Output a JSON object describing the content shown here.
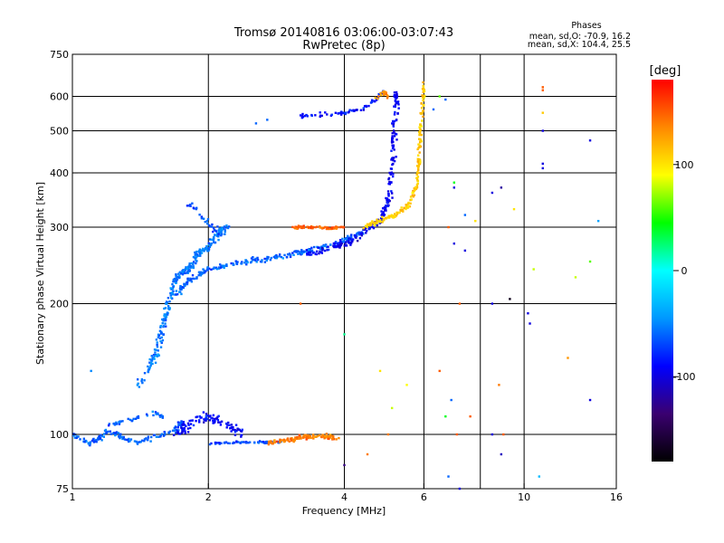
{
  "chart_data": {
    "type": "scatter",
    "title": "Tromsø 20140816 03:06:00-03:07:43",
    "subtitle": "RwPretec (8p)",
    "xlabel": "Frequency [MHz]",
    "ylabel": "Stationary phase Virtual Height [km]",
    "x_scale": "log",
    "y_scale": "log",
    "xlim": [
      1,
      16
    ],
    "ylim": [
      75,
      750
    ],
    "x_ticks": [
      1,
      2,
      4,
      6,
      10,
      16
    ],
    "x_grid": [
      2,
      4,
      6,
      8,
      10
    ],
    "y_ticks": [
      75,
      100,
      200,
      300,
      400,
      500,
      600,
      750
    ],
    "y_grid": [
      100,
      200,
      300,
      400,
      500,
      600
    ],
    "grid": true,
    "phase_stats": {
      "title": "Phases",
      "line_o": "mean, sd,O: -70.9, 16.2",
      "line_x": "mean, sd,X: 104.4, 25.5"
    },
    "colorbar": {
      "label": "[deg]",
      "range": [
        -180,
        180
      ],
      "ticks": [
        100,
        0,
        -100
      ],
      "colors": [
        "#000000",
        "#3a0070",
        "#0000ff",
        "#0098ff",
        "#00ffff",
        "#00ff00",
        "#ffff00",
        "#ff8800",
        "#ff0000"
      ]
    },
    "series_traces": [
      {
        "points": [
          [
            1.0,
            100,
            -60
          ],
          [
            1.05,
            97,
            -60
          ],
          [
            1.1,
            95,
            -60
          ],
          [
            1.15,
            98,
            -60
          ],
          [
            1.2,
            102,
            -60
          ],
          [
            1.3,
            98,
            -60
          ],
          [
            1.4,
            96,
            -60
          ],
          [
            1.5,
            98,
            -60
          ],
          [
            1.6,
            100,
            -60
          ],
          [
            1.7,
            103,
            -60
          ],
          [
            1.75,
            107,
            -60
          ]
        ],
        "spread_x": 0.02,
        "spread_y": 0.02,
        "n": 140
      },
      {
        "points": [
          [
            1.2,
            105,
            -60
          ],
          [
            1.3,
            107,
            -60
          ],
          [
            1.5,
            112,
            -60
          ],
          [
            1.6,
            110,
            -60
          ]
        ],
        "spread_x": 0.02,
        "spread_y": 0.02,
        "n": 40
      },
      {
        "points": [
          [
            1.4,
            130,
            -55
          ],
          [
            1.5,
            145,
            -55
          ],
          [
            1.55,
            160,
            -55
          ],
          [
            1.6,
            185,
            -55
          ],
          [
            1.65,
            210,
            -55
          ],
          [
            1.7,
            230,
            -55
          ],
          [
            1.8,
            240,
            -55
          ],
          [
            1.9,
            260,
            -55
          ],
          [
            2.0,
            270,
            -55
          ],
          [
            2.1,
            290,
            -55
          ],
          [
            2.2,
            300,
            -55
          ]
        ],
        "spread_x": 0.025,
        "spread_y": 0.03,
        "n": 280
      },
      {
        "points": [
          [
            1.7,
            210,
            -60
          ],
          [
            1.8,
            225,
            -60
          ],
          [
            2.0,
            240,
            -60
          ],
          [
            2.4,
            250,
            -60
          ],
          [
            2.8,
            255,
            -60
          ],
          [
            3.2,
            262,
            -60
          ],
          [
            3.6,
            270,
            -60
          ],
          [
            4.0,
            280,
            -60
          ],
          [
            4.4,
            292,
            -60
          ]
        ],
        "spread_x": 0.02,
        "spread_y": 0.022,
        "n": 260
      },
      {
        "points": [
          [
            1.7,
            100,
            -90
          ],
          [
            1.8,
            105,
            -90
          ],
          [
            2.0,
            110,
            -90
          ],
          [
            2.2,
            105,
            -90
          ],
          [
            2.4,
            100,
            -90
          ]
        ],
        "spread_x": 0.03,
        "spread_y": 0.04,
        "n": 110
      },
      {
        "points": [
          [
            2.0,
            95,
            -70
          ],
          [
            2.3,
            96,
            -70
          ],
          [
            2.6,
            96,
            -70
          ],
          [
            2.9,
            96,
            -70
          ]
        ],
        "spread_x": 0.02,
        "spread_y": 0.01,
        "n": 60
      },
      {
        "points": [
          [
            1.8,
            340,
            -65
          ],
          [
            1.9,
            325,
            -65
          ],
          [
            2.0,
            305,
            -65
          ],
          [
            2.1,
            290,
            -65
          ]
        ],
        "spread_x": 0.015,
        "spread_y": 0.03,
        "n": 30
      },
      {
        "points": [
          [
            3.3,
            260,
            -95
          ],
          [
            3.6,
            265,
            -95
          ],
          [
            4.0,
            275,
            -95
          ],
          [
            4.4,
            290,
            -95
          ],
          [
            4.8,
            310,
            -95
          ],
          [
            5.0,
            340,
            -95
          ],
          [
            5.1,
            400,
            -95
          ],
          [
            5.15,
            480,
            -95
          ],
          [
            5.2,
            560,
            -95
          ],
          [
            5.2,
            610,
            -95
          ]
        ],
        "spread_x": 0.02,
        "spread_y": 0.03,
        "n": 220
      },
      {
        "points": [
          [
            3.2,
            540,
            -85
          ],
          [
            3.6,
            545,
            -85
          ],
          [
            4.0,
            550,
            -85
          ],
          [
            4.4,
            560,
            -85
          ],
          [
            4.7,
            590,
            -85
          ],
          [
            4.9,
            620,
            -85
          ]
        ],
        "spread_x": 0.02,
        "spread_y": 0.015,
        "n": 70
      },
      {
        "points": [
          [
            3.1,
            300,
            150
          ],
          [
            3.4,
            300,
            150
          ],
          [
            3.7,
            298,
            150
          ],
          [
            4.0,
            300,
            150
          ]
        ],
        "spread_x": 0.015,
        "spread_y": 0.01,
        "n": 70
      },
      {
        "points": [
          [
            4.4,
            300,
            110
          ],
          [
            4.8,
            310,
            110
          ],
          [
            5.2,
            320,
            110
          ],
          [
            5.6,
            340,
            110
          ],
          [
            5.8,
            380,
            110
          ],
          [
            5.85,
            430,
            110
          ],
          [
            5.9,
            500,
            110
          ],
          [
            5.95,
            580,
            110
          ],
          [
            6.0,
            640,
            110
          ]
        ],
        "spread_x": 0.012,
        "spread_y": 0.02,
        "n": 180
      },
      {
        "points": [
          [
            2.7,
            96,
            140
          ],
          [
            3.0,
            97,
            140
          ],
          [
            3.3,
            99,
            140
          ],
          [
            3.6,
            99,
            140
          ],
          [
            3.9,
            98,
            140
          ]
        ],
        "spread_x": 0.025,
        "spread_y": 0.02,
        "n": 110
      },
      {
        "points": [
          [
            4.7,
            600,
            130
          ],
          [
            4.9,
            615,
            130
          ],
          [
            5.0,
            600,
            130
          ]
        ],
        "spread_x": 0.02,
        "spread_y": 0.02,
        "n": 20
      }
    ],
    "isolated_points": [
      [
        2.55,
        520,
        -60
      ],
      [
        2.7,
        530,
        -60
      ],
      [
        1.1,
        140,
        -50
      ],
      [
        3.2,
        200,
        150
      ],
      [
        6.8,
        300,
        150
      ],
      [
        7.2,
        200,
        150
      ],
      [
        6.5,
        140,
        150
      ],
      [
        7.1,
        100,
        150
      ],
      [
        9.0,
        100,
        150
      ],
      [
        11.0,
        620,
        150
      ],
      [
        11.0,
        630,
        150
      ],
      [
        11.0,
        550,
        110
      ],
      [
        11.0,
        500,
        -100
      ],
      [
        11.0,
        420,
        -100
      ],
      [
        11.0,
        410,
        -100
      ],
      [
        8.5,
        360,
        -100
      ],
      [
        8.9,
        370,
        -120
      ],
      [
        8.5,
        200,
        -100
      ],
      [
        9.3,
        205,
        -170
      ],
      [
        10.2,
        190,
        -100
      ],
      [
        10.3,
        180,
        -100
      ],
      [
        10.8,
        80,
        -30
      ],
      [
        12.5,
        150,
        130
      ],
      [
        14.0,
        475,
        -100
      ],
      [
        14.6,
        310,
        -40
      ],
      [
        14.0,
        250,
        60
      ],
      [
        13.0,
        230,
        80
      ],
      [
        14.0,
        120,
        -100
      ],
      [
        7.0,
        275,
        -100
      ],
      [
        7.4,
        265,
        -100
      ],
      [
        7.0,
        370,
        -100
      ],
      [
        6.7,
        590,
        -60
      ],
      [
        6.5,
        600,
        60
      ],
      [
        5.5,
        130,
        90
      ],
      [
        4.8,
        140,
        100
      ],
      [
        4.5,
        90,
        140
      ],
      [
        5.0,
        100,
        140
      ],
      [
        7.4,
        320,
        -60
      ],
      [
        7.0,
        380,
        40
      ],
      [
        7.6,
        110,
        150
      ],
      [
        8.8,
        130,
        140
      ],
      [
        8.5,
        100,
        -100
      ],
      [
        8.9,
        90,
        -110
      ],
      [
        6.8,
        80,
        -60
      ],
      [
        7.2,
        75,
        -100
      ],
      [
        4.0,
        85,
        -130
      ],
      [
        6.7,
        110,
        40
      ],
      [
        6.9,
        120,
        -60
      ],
      [
        4.0,
        170,
        20
      ],
      [
        5.1,
        115,
        80
      ],
      [
        7.8,
        310,
        100
      ],
      [
        6.3,
        560,
        -60
      ],
      [
        9.5,
        330,
        100
      ],
      [
        10.5,
        240,
        80
      ]
    ]
  }
}
